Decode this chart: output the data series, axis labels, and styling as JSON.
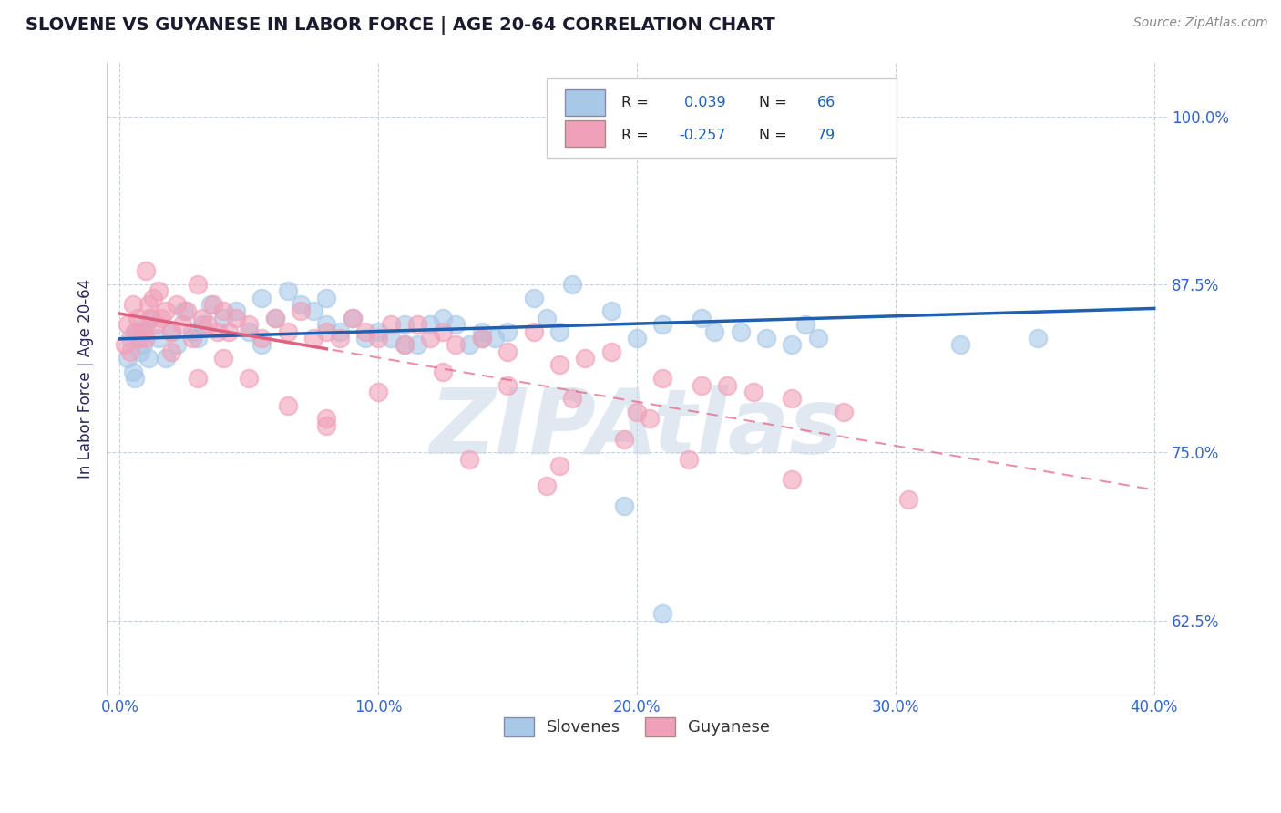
{
  "title": "SLOVENE VS GUYANESE IN LABOR FORCE | AGE 20-64 CORRELATION CHART",
  "source_text": "Source: ZipAtlas.com",
  "ylabel": "In Labor Force | Age 20-64",
  "xlim": [
    -0.5,
    40.5
  ],
  "ylim": [
    57.0,
    104.0
  ],
  "yticks": [
    62.5,
    75.0,
    87.5,
    100.0
  ],
  "xticks": [
    0.0,
    10.0,
    20.0,
    30.0,
    40.0
  ],
  "xtick_labels": [
    "0.0%",
    "10.0%",
    "20.0%",
    "30.0%",
    "40.0%"
  ],
  "ytick_labels": [
    "62.5%",
    "75.0%",
    "87.5%",
    "100.0%"
  ],
  "blue_color": "#a8c8e8",
  "pink_color": "#f0a0b8",
  "blue_line_color": "#2060b0",
  "pink_line_color": "#e06080",
  "R_blue": 0.039,
  "N_blue": 66,
  "R_pink": -0.257,
  "N_pink": 79,
  "legend_labels": [
    "Slovenes",
    "Guyanese"
  ],
  "watermark": "ZIPAtlas",
  "watermark_color": "#c8d8e8",
  "background_color": "#ffffff",
  "grid_color": "#c8d0e0",
  "title_color": "#1a1a2e",
  "title_fontsize": 14,
  "axis_label_color": "#2a2a5a",
  "tick_label_color": "#3366cc",
  "source_color": "#888888",
  "blue_scatter_x": [
    0.3,
    0.4,
    0.5,
    0.6,
    0.7,
    0.8,
    0.9,
    1.0,
    1.1,
    1.2,
    1.5,
    1.8,
    2.0,
    2.2,
    2.5,
    2.8,
    3.0,
    3.2,
    3.5,
    4.0,
    4.5,
    5.0,
    5.5,
    6.0,
    6.5,
    7.0,
    7.5,
    8.0,
    8.5,
    9.0,
    9.5,
    10.0,
    10.5,
    11.0,
    11.5,
    12.0,
    12.5,
    13.0,
    13.5,
    14.0,
    14.5,
    15.0,
    16.0,
    16.5,
    17.5,
    19.0,
    21.0,
    22.5,
    24.0,
    25.0,
    26.5,
    28.5,
    29.5,
    32.5,
    5.5,
    8.0,
    11.0,
    14.0,
    17.0,
    20.0,
    23.0,
    26.0,
    19.5,
    21.0,
    27.0,
    35.5
  ],
  "blue_scatter_y": [
    82.0,
    83.5,
    81.0,
    80.5,
    84.0,
    82.5,
    83.0,
    84.5,
    82.0,
    85.0,
    83.5,
    82.0,
    84.0,
    83.0,
    85.5,
    84.0,
    83.5,
    84.5,
    86.0,
    85.0,
    85.5,
    84.0,
    86.5,
    85.0,
    87.0,
    86.0,
    85.5,
    86.5,
    84.0,
    85.0,
    83.5,
    84.0,
    83.5,
    84.5,
    83.0,
    84.5,
    85.0,
    84.5,
    83.0,
    84.0,
    83.5,
    84.0,
    86.5,
    85.0,
    87.5,
    85.5,
    84.5,
    85.0,
    84.0,
    83.5,
    84.5,
    100.0,
    100.0,
    83.0,
    83.0,
    84.5,
    83.0,
    83.5,
    84.0,
    83.5,
    84.0,
    83.0,
    71.0,
    63.0,
    83.5,
    83.5
  ],
  "pink_scatter_x": [
    0.2,
    0.3,
    0.4,
    0.5,
    0.6,
    0.7,
    0.8,
    0.9,
    1.0,
    1.1,
    1.2,
    1.3,
    1.4,
    1.5,
    1.6,
    1.8,
    2.0,
    2.2,
    2.4,
    2.6,
    2.8,
    3.0,
    3.2,
    3.4,
    3.6,
    3.8,
    4.0,
    4.2,
    4.5,
    5.0,
    5.5,
    6.0,
    6.5,
    7.0,
    7.5,
    8.0,
    8.5,
    9.0,
    9.5,
    10.0,
    10.5,
    11.0,
    11.5,
    12.0,
    12.5,
    13.0,
    14.0,
    15.0,
    16.0,
    17.0,
    18.0,
    19.0,
    20.0,
    21.0,
    22.5,
    24.5,
    26.0,
    28.0,
    30.5,
    1.0,
    2.0,
    3.0,
    4.0,
    5.0,
    6.5,
    8.0,
    10.0,
    12.5,
    15.0,
    17.5,
    20.5,
    23.5,
    17.0,
    22.0,
    26.0,
    8.0,
    13.5,
    16.5,
    19.5
  ],
  "pink_scatter_y": [
    83.0,
    84.5,
    82.5,
    86.0,
    84.0,
    85.0,
    83.5,
    84.0,
    88.5,
    86.0,
    85.0,
    86.5,
    84.5,
    87.0,
    85.0,
    85.5,
    84.0,
    86.0,
    84.5,
    85.5,
    83.5,
    87.5,
    85.0,
    84.5,
    86.0,
    84.0,
    85.5,
    84.0,
    85.0,
    84.5,
    83.5,
    85.0,
    84.0,
    85.5,
    83.5,
    84.0,
    83.5,
    85.0,
    84.0,
    83.5,
    84.5,
    83.0,
    84.5,
    83.5,
    84.0,
    83.0,
    83.5,
    82.5,
    84.0,
    81.5,
    82.0,
    82.5,
    78.0,
    80.5,
    80.0,
    79.5,
    79.0,
    78.0,
    71.5,
    83.5,
    82.5,
    80.5,
    82.0,
    80.5,
    78.5,
    77.5,
    79.5,
    81.0,
    80.0,
    79.0,
    77.5,
    80.0,
    74.0,
    74.5,
    73.0,
    77.0,
    74.5,
    72.5,
    76.0
  ]
}
